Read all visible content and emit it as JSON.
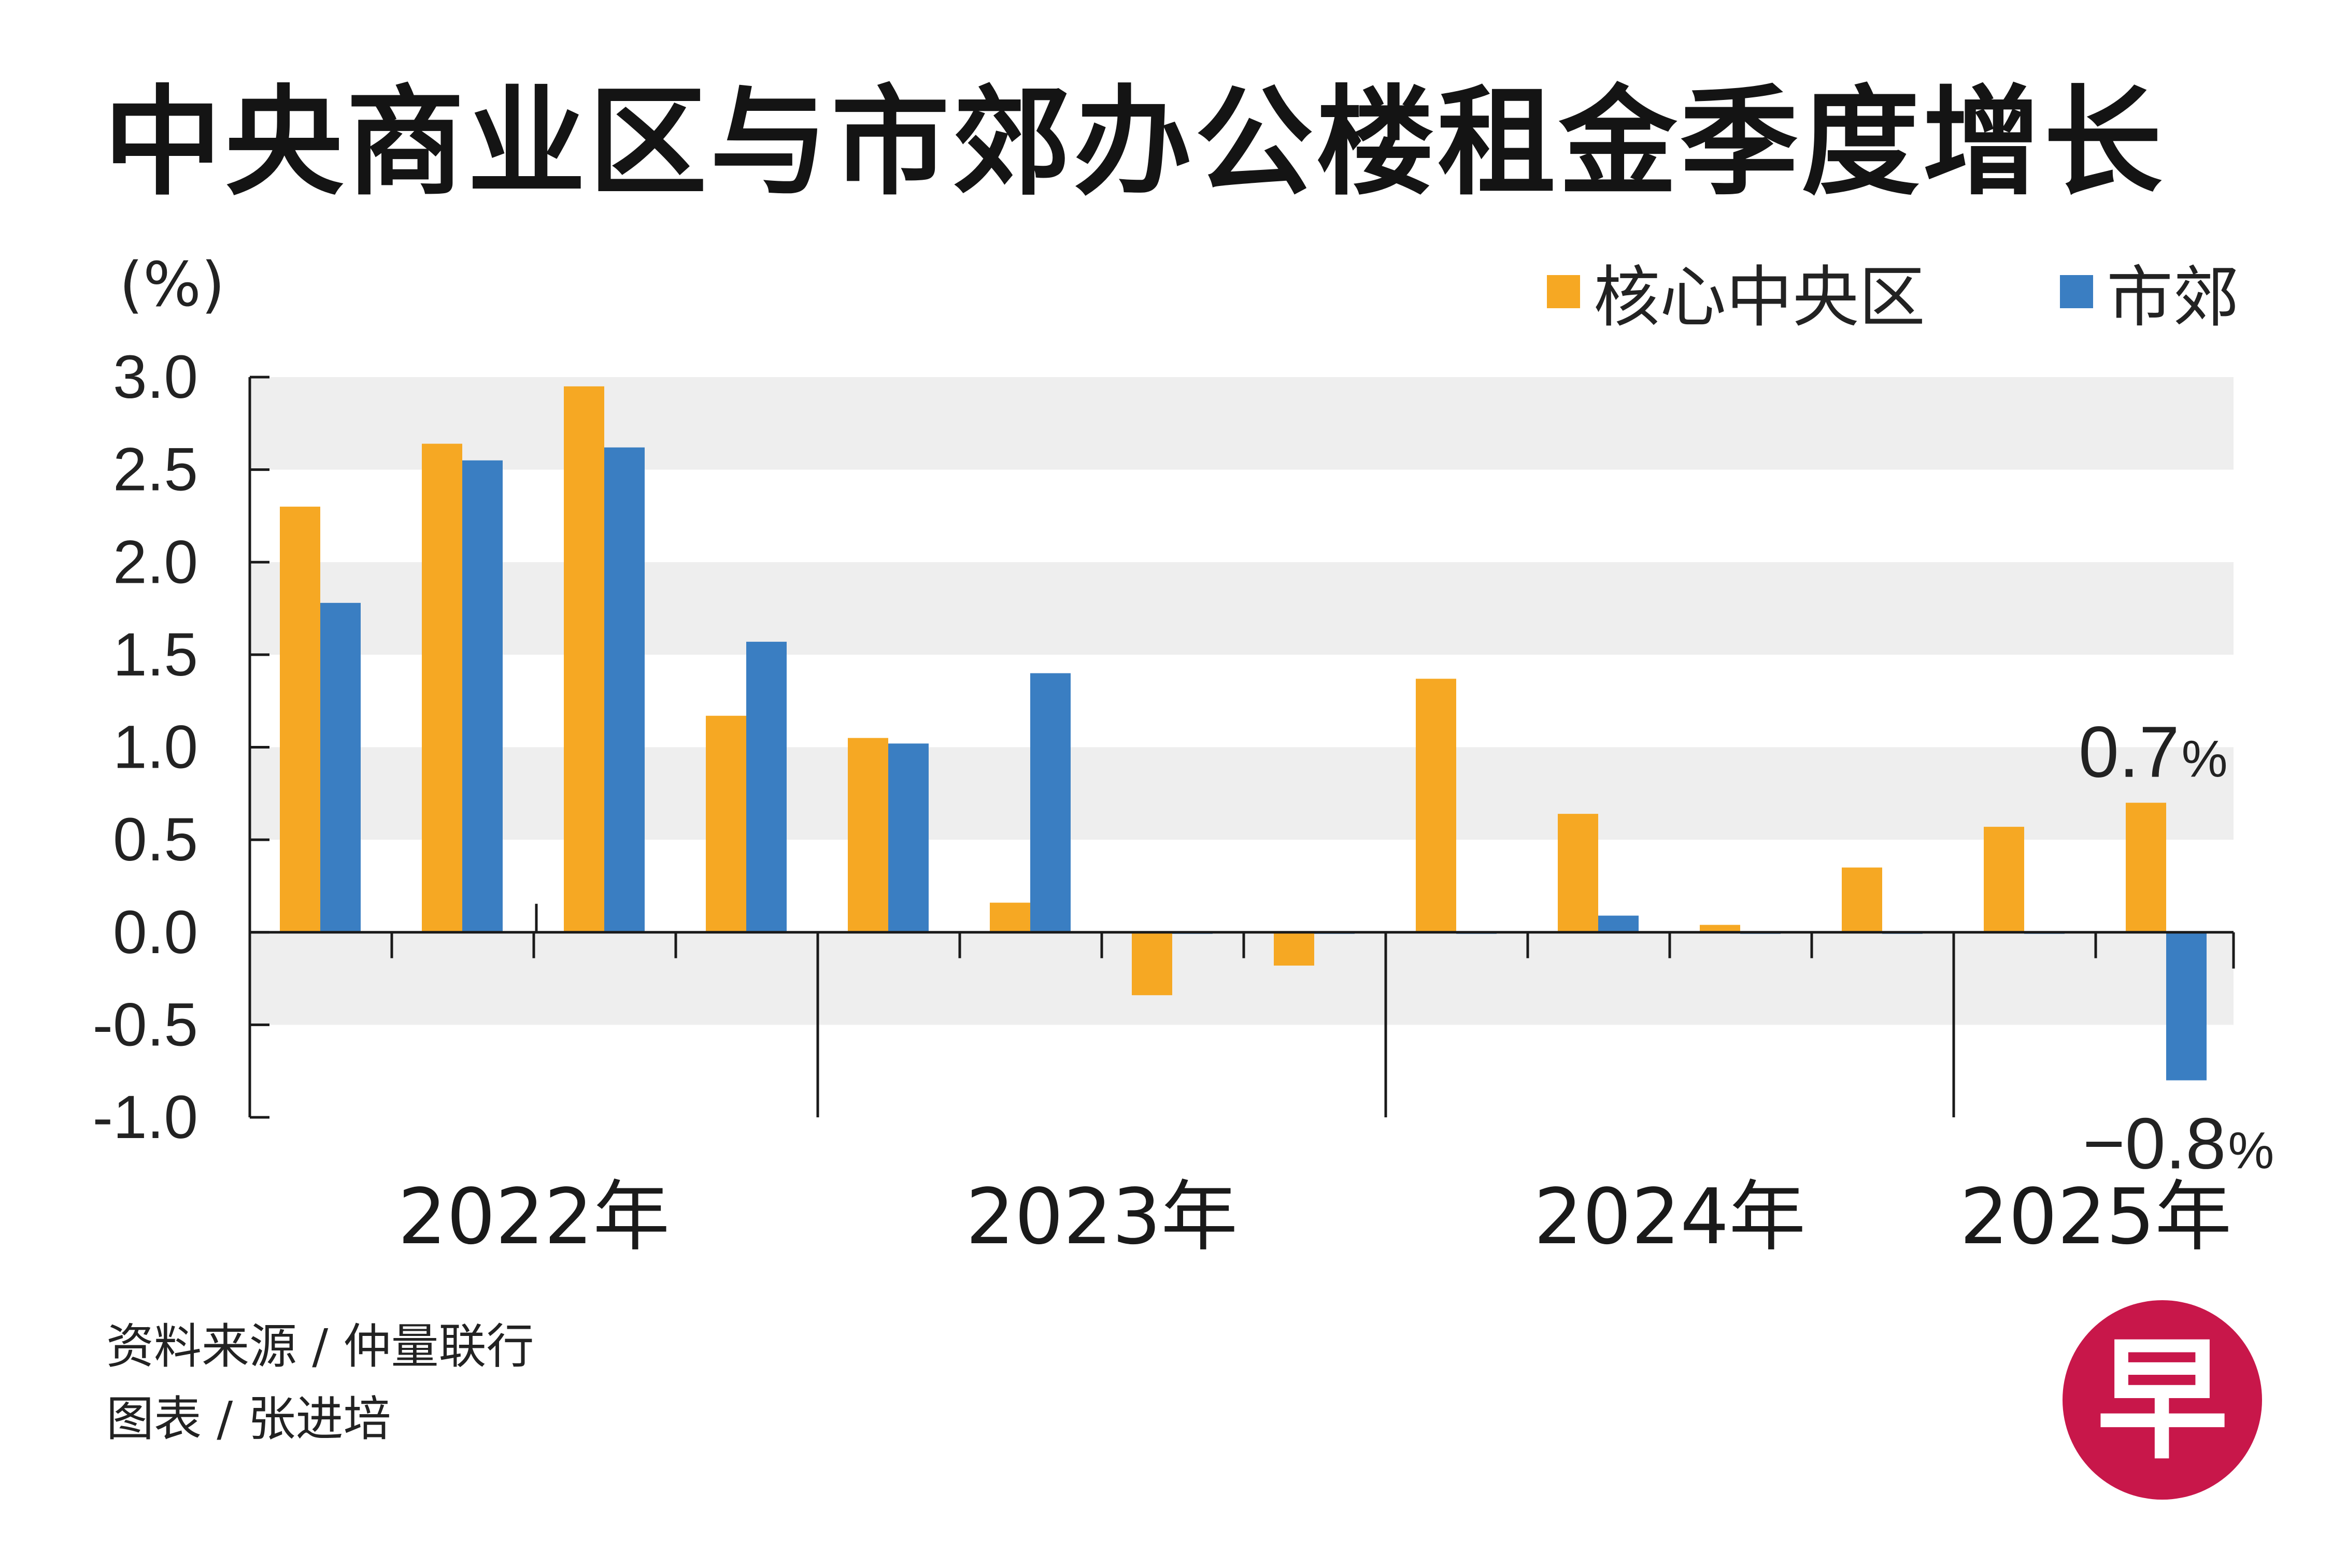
{
  "title": "中央商业区与市郊办公楼租金季度增长",
  "unit": "(%)",
  "legend": [
    {
      "label": "核心中央区",
      "color": "#F6A823"
    },
    {
      "label": "市郊",
      "color": "#3A7EC2"
    }
  ],
  "source_line": "资料来源 / 仲量联行",
  "credit_line": "图表 / 张进培",
  "logo_char": "早",
  "chart_data": {
    "type": "bar",
    "title": "中央商业区与市郊办公楼租金季度增长",
    "ylabel": "(%)",
    "ylim": [
      -1.0,
      3.0
    ],
    "yticks": [
      "3.0",
      "2.5",
      "2.0",
      "1.5",
      "1.0",
      "0.5",
      "0.0",
      "-0.5",
      "-1.0"
    ],
    "ytick_values": [
      3.0,
      2.5,
      2.0,
      1.5,
      1.0,
      0.5,
      0.0,
      -0.5,
      -1.0
    ],
    "categories": [
      "2022 Q1",
      "2022 Q2",
      "2022 Q3",
      "2022 Q4",
      "2023 Q1",
      "2023 Q2",
      "2023 Q3",
      "2023 Q4",
      "2024 Q1",
      "2024 Q2",
      "2024 Q3",
      "2024 Q4",
      "2025 Q1",
      "2025 Q2"
    ],
    "year_groups": [
      {
        "label": "2022年",
        "quarters": 4
      },
      {
        "label": "2023年",
        "quarters": 4
      },
      {
        "label": "2024年",
        "quarters": 4
      },
      {
        "label": "2025年",
        "quarters": 2
      }
    ],
    "series": [
      {
        "name": "核心中央区",
        "color": "#F6A823",
        "values": [
          2.3,
          2.64,
          2.95,
          1.17,
          1.05,
          0.16,
          -0.34,
          -0.18,
          1.37,
          0.64,
          0.04,
          0.35,
          0.57,
          0.7
        ]
      },
      {
        "name": "市郊",
        "color": "#3A7EC2",
        "values": [
          1.78,
          2.55,
          2.62,
          1.57,
          1.02,
          1.4,
          0.0,
          0.0,
          0.0,
          0.09,
          0.0,
          0.0,
          0.0,
          -0.8
        ]
      }
    ],
    "annotations": [
      {
        "value": "0.7",
        "suffix": "%",
        "series": 0,
        "index": 13
      },
      {
        "value": "−0.8",
        "suffix": "%",
        "series": 1,
        "index": 13
      }
    ],
    "grid": "alternating-bands"
  }
}
